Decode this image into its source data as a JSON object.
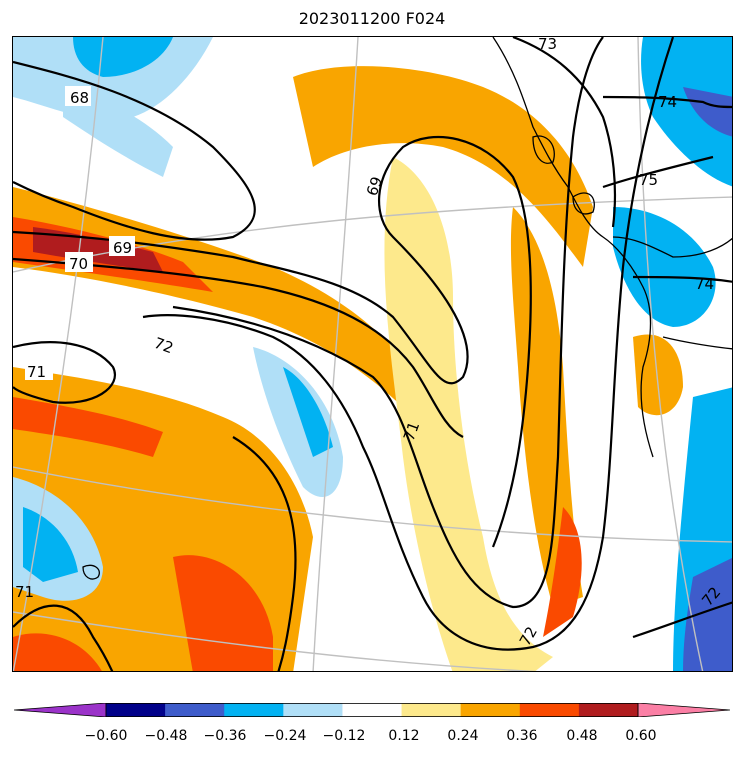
{
  "title": "2023011200 F024",
  "colorbar": {
    "levels": [
      "−0.60",
      "−0.48",
      "−0.36",
      "−0.24",
      "−0.12",
      "0.12",
      "0.24",
      "0.36",
      "0.48",
      "0.60"
    ],
    "colors": [
      "#9b33c9",
      "#01018a",
      "#3e5ccb",
      "#02b2f2",
      "#b0dff7",
      "#ffffff",
      "#fde98c",
      "#f9a500",
      "#fa4a00",
      "#b01c1e",
      "#fb7fa5"
    ]
  },
  "contour_labels": [
    "68",
    "69",
    "70",
    "71",
    "72",
    "73",
    "74",
    "75",
    "69",
    "71",
    "71",
    "72",
    "74",
    "72"
  ]
}
